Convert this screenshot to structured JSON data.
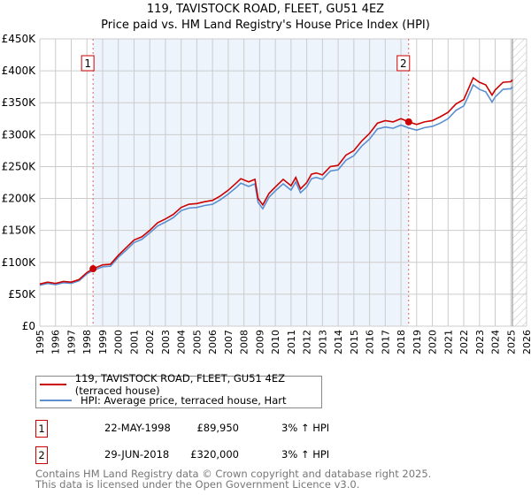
{
  "title": "119, TAVISTOCK ROAD, FLEET, GU51 4EZ",
  "subtitle": "Price paid vs. HM Land Registry's House Price Index (HPI)",
  "chart_data": {
    "type": "line",
    "xlim": [
      1995,
      2026
    ],
    "ylim": [
      0,
      450000
    ],
    "y_ticks": [
      0,
      50000,
      100000,
      150000,
      200000,
      250000,
      300000,
      350000,
      400000,
      450000
    ],
    "y_tick_labels": [
      "£0",
      "£50K",
      "£100K",
      "£150K",
      "£200K",
      "£250K",
      "£300K",
      "£350K",
      "£400K",
      "£450K"
    ],
    "x_ticks": [
      "1995",
      "1996",
      "1997",
      "1998",
      "1999",
      "2000",
      "2001",
      "2002",
      "2003",
      "2004",
      "2005",
      "2006",
      "2007",
      "2008",
      "2009",
      "2010",
      "2011",
      "2012",
      "2013",
      "2014",
      "2015",
      "2016",
      "2017",
      "2018",
      "2019",
      "2020",
      "2021",
      "2022",
      "2023",
      "2024",
      "2025",
      "2026"
    ],
    "grid": true,
    "colors": {
      "property": "#cc0000",
      "hpi": "#5b8fd0",
      "shade": "#eef4fc"
    },
    "series": [
      {
        "name": "119, TAVISTOCK ROAD, FLEET, GU51 4EZ (terraced house)",
        "x": [
          1995,
          1995.5,
          1996,
          1996.5,
          1997,
          1997.5,
          1998,
          1998.39,
          1999,
          1999.5,
          2000,
          2000.5,
          2001,
          2001.5,
          2002,
          2002.5,
          2003,
          2003.5,
          2004,
          2004.5,
          2005,
          2005.5,
          2006,
          2006.5,
          2007,
          2007.5,
          2007.8,
          2008.3,
          2008.7,
          2008.9,
          2009.2,
          2009.6,
          2010,
          2010.5,
          2011,
          2011.3,
          2011.6,
          2012,
          2012.3,
          2012.6,
          2013,
          2013.5,
          2014,
          2014.5,
          2015,
          2015.5,
          2016,
          2016.5,
          2017,
          2017.5,
          2018,
          2018.49,
          2019,
          2019.5,
          2020,
          2020.5,
          2021,
          2021.5,
          2022,
          2022.3,
          2022.6,
          2023,
          2023.4,
          2023.8,
          2024,
          2024.5,
          2025,
          2025.1
        ],
        "y": [
          66000,
          69000,
          67000,
          70000,
          69000,
          73000,
          84000,
          89950,
          96000,
          97000,
          111000,
          123000,
          135000,
          140000,
          150000,
          162000,
          168000,
          175000,
          186000,
          191000,
          192000,
          195000,
          197000,
          204000,
          213000,
          224000,
          231000,
          226000,
          230000,
          200000,
          190000,
          208000,
          218000,
          230000,
          220000,
          233000,
          215000,
          225000,
          238000,
          240000,
          237000,
          250000,
          252000,
          268000,
          275000,
          290000,
          302000,
          318000,
          322000,
          320000,
          325000,
          320000,
          316000,
          320000,
          322000,
          328000,
          335000,
          348000,
          355000,
          372000,
          389000,
          382000,
          378000,
          362000,
          370000,
          382000,
          383000,
          386000
        ]
      },
      {
        "name": "HPI: Average price, terraced house, Hart",
        "x": [
          1995,
          1995.5,
          1996,
          1996.5,
          1997,
          1997.5,
          1998,
          1998.39,
          1999,
          1999.5,
          2000,
          2000.5,
          2001,
          2001.5,
          2002,
          2002.5,
          2003,
          2003.5,
          2004,
          2004.5,
          2005,
          2005.5,
          2006,
          2006.5,
          2007,
          2007.5,
          2007.8,
          2008.3,
          2008.7,
          2008.9,
          2009.2,
          2009.6,
          2010,
          2010.5,
          2011,
          2011.3,
          2011.6,
          2012,
          2012.3,
          2012.6,
          2013,
          2013.5,
          2014,
          2014.5,
          2015,
          2015.5,
          2016,
          2016.5,
          2017,
          2017.5,
          2018,
          2018.49,
          2019,
          2019.5,
          2020,
          2020.5,
          2021,
          2021.5,
          2022,
          2022.3,
          2022.6,
          2023,
          2023.4,
          2023.8,
          2024,
          2024.5,
          2025,
          2025.1
        ],
        "y": [
          64000,
          67000,
          65000,
          68000,
          67000,
          71000,
          82000,
          87300,
          93000,
          94000,
          108000,
          119000,
          131000,
          136000,
          146000,
          157000,
          163000,
          170000,
          181000,
          185000,
          186000,
          189000,
          191000,
          198000,
          207000,
          217000,
          224000,
          219000,
          223000,
          194000,
          184000,
          202000,
          212000,
          223000,
          213000,
          226000,
          209000,
          218000,
          231000,
          233000,
          230000,
          243000,
          245000,
          260000,
          267000,
          282000,
          293000,
          309000,
          312000,
          310000,
          315000,
          310600,
          307000,
          311000,
          313000,
          318000,
          325000,
          338000,
          345000,
          361000,
          378000,
          371000,
          367000,
          351000,
          359000,
          371000,
          372000,
          375000
        ]
      }
    ],
    "sales": [
      {
        "label": "1",
        "x": 1998.39,
        "y": 89950
      },
      {
        "label": "2",
        "x": 2018.49,
        "y": 320000
      }
    ],
    "forecast_hatch_from": 2025.1
  },
  "legend": {
    "property": "119, TAVISTOCK ROAD, FLEET, GU51 4EZ (terraced house)",
    "hpi": "HPI: Average price, terraced house, Hart"
  },
  "transactions": [
    {
      "num": "1",
      "date": "22-MAY-1998",
      "price": "£89,950",
      "hpi": "3% ↑ HPI"
    },
    {
      "num": "2",
      "date": "29-JUN-2018",
      "price": "£320,000",
      "hpi": "3% ↑ HPI"
    }
  ],
  "footer": {
    "line1": "Contains HM Land Registry data © Crown copyright and database right 2025.",
    "line2": "This data is licensed under the Open Government Licence v3.0."
  }
}
